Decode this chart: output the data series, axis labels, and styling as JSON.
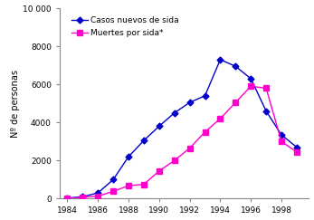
{
  "years_casos": [
    1984,
    1985,
    1986,
    1987,
    1988,
    1989,
    1990,
    1991,
    1992,
    1993,
    1994,
    1995,
    1996,
    1997,
    1998,
    1999
  ],
  "valores_casos": [
    30,
    100,
    300,
    1000,
    2200,
    3050,
    3800,
    4500,
    5050,
    5400,
    7300,
    6950,
    6300,
    4600,
    3350,
    2700
  ],
  "years_muertes": [
    1984,
    1985,
    1986,
    1987,
    1988,
    1989,
    1990,
    1991,
    1992,
    1993,
    1994,
    1995,
    1996,
    1997,
    1998,
    1999
  ],
  "valores_muertes": [
    20,
    70,
    130,
    380,
    680,
    750,
    1450,
    2000,
    2650,
    3500,
    4200,
    5050,
    5900,
    5800,
    3000,
    2450
  ],
  "color_casos": "#0000CC",
  "color_muertes": "#FF00CC",
  "label_casos": "Casos nuevos de sida",
  "label_muertes": "Muertes por sida*",
  "ylabel": "Nº de personas",
  "xlim": [
    1983.5,
    1999.8
  ],
  "ylim": [
    0,
    10000
  ],
  "yticks": [
    0,
    2000,
    4000,
    6000,
    8000,
    10000
  ],
  "ytick_labels": [
    "0",
    "2000",
    "4000",
    "6000",
    "8000",
    "10 000"
  ],
  "xticks": [
    1984,
    1986,
    1988,
    1990,
    1992,
    1994,
    1996,
    1998
  ],
  "bg_color": "#FFFFFF"
}
